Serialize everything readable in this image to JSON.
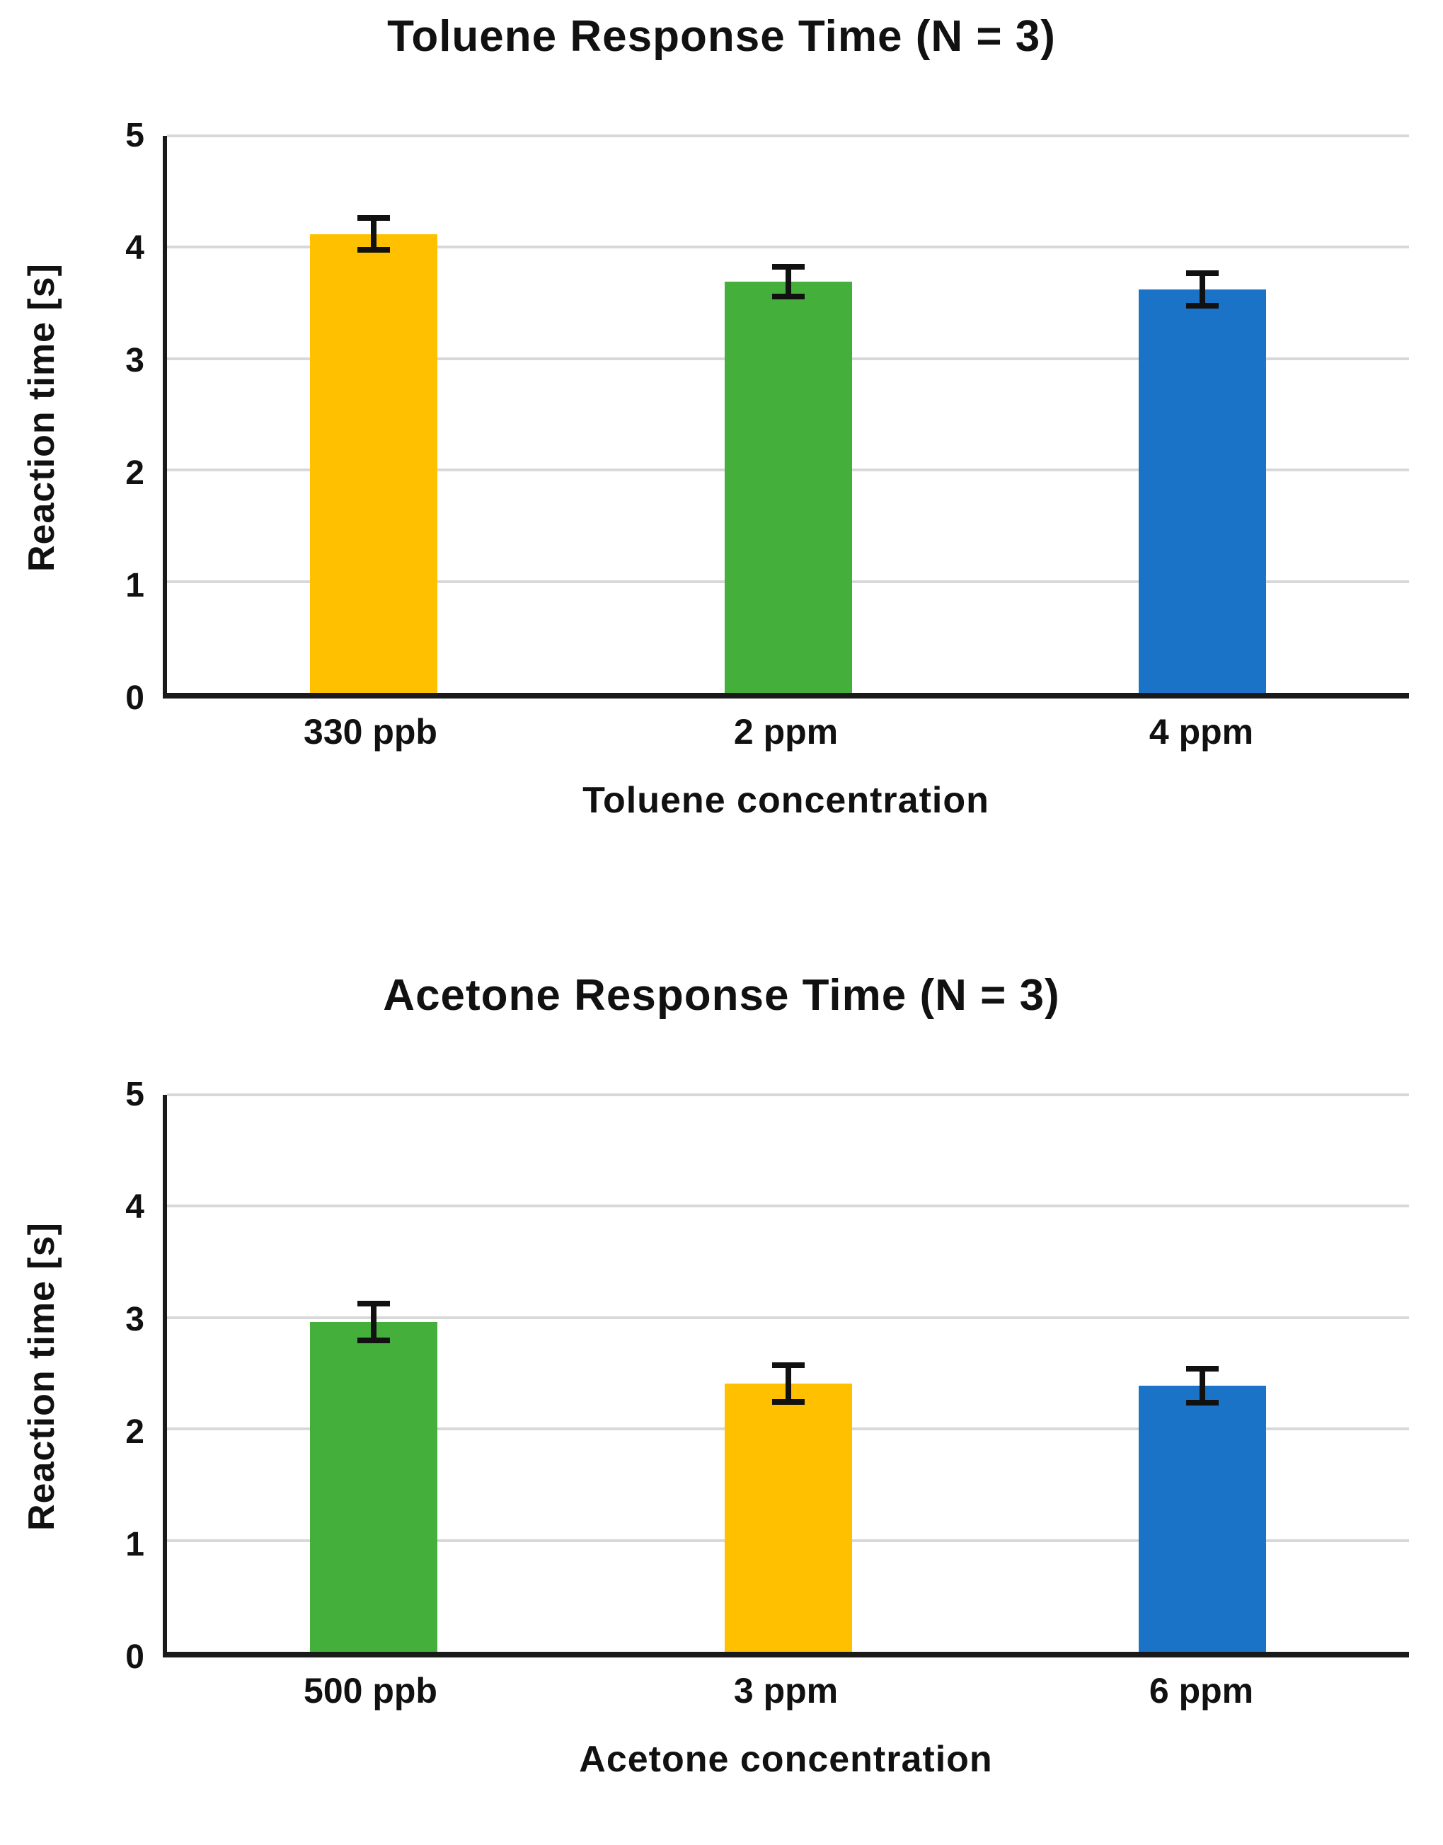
{
  "style": {
    "background": "#FFFFFF",
    "grid_color": "#D8D8D8",
    "axis_color": "#1A1A1A",
    "text_color": "#111111",
    "error_bar_color": "#111111"
  },
  "chart_data": [
    {
      "type": "bar",
      "title": "Toluene Response Time (N = 3)",
      "xlabel": "Toluene concentration",
      "ylabel": "Reaction time [s]",
      "categories": [
        "330 ppb",
        "2 ppm",
        "4 ppm"
      ],
      "values": [
        4.12,
        3.69,
        3.62
      ],
      "error_bars": [
        0.17,
        0.16,
        0.17
      ],
      "bar_colors": [
        "#FFC000",
        "#44AF3B",
        "#1B73C8"
      ],
      "ylim": [
        0,
        5
      ],
      "yticks": [
        0,
        1,
        2,
        3,
        4,
        5
      ],
      "grid": true,
      "legend": false
    },
    {
      "type": "bar",
      "title": "Acetone Response Time (N = 3)",
      "xlabel": "Acetone concentration",
      "ylabel": "Reaction time [s]",
      "categories": [
        "500 ppb",
        "3 ppm",
        "6 ppm"
      ],
      "values": [
        2.96,
        2.41,
        2.39
      ],
      "error_bars": [
        0.19,
        0.19,
        0.18
      ],
      "bar_colors": [
        "#44AF3B",
        "#FFC000",
        "#1B73C8"
      ],
      "ylim": [
        0,
        5
      ],
      "yticks": [
        0,
        1,
        2,
        3,
        4,
        5
      ],
      "grid": true,
      "legend": false
    }
  ]
}
